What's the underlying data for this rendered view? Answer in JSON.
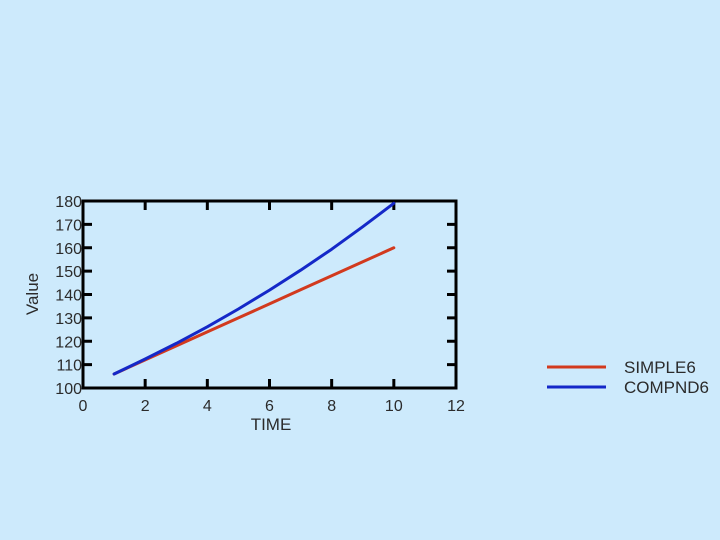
{
  "chart_data": {
    "type": "line",
    "title": "",
    "xlabel": "TIME",
    "ylabel": "Value",
    "xlim": [
      0,
      12
    ],
    "ylim": [
      100,
      180
    ],
    "xticks": [
      0,
      2,
      4,
      6,
      8,
      10,
      12
    ],
    "yticks": [
      100,
      110,
      120,
      130,
      140,
      150,
      160,
      170,
      180
    ],
    "grid": false,
    "legend_position": "right",
    "series": [
      {
        "name": "SIMPLE6",
        "color": "#d23a1e",
        "x": [
          1,
          2,
          3,
          4,
          5,
          6,
          7,
          8,
          9,
          10
        ],
        "y": [
          106,
          112,
          118,
          124,
          130,
          136,
          142,
          148,
          154,
          160
        ]
      },
      {
        "name": "COMPND6",
        "color": "#1428c8",
        "x": [
          1,
          2,
          3,
          4,
          5,
          6,
          7,
          8,
          9,
          10
        ],
        "y": [
          106,
          112.4,
          119.1,
          126.2,
          133.8,
          141.9,
          150.4,
          159.4,
          169,
          179
        ]
      }
    ]
  }
}
